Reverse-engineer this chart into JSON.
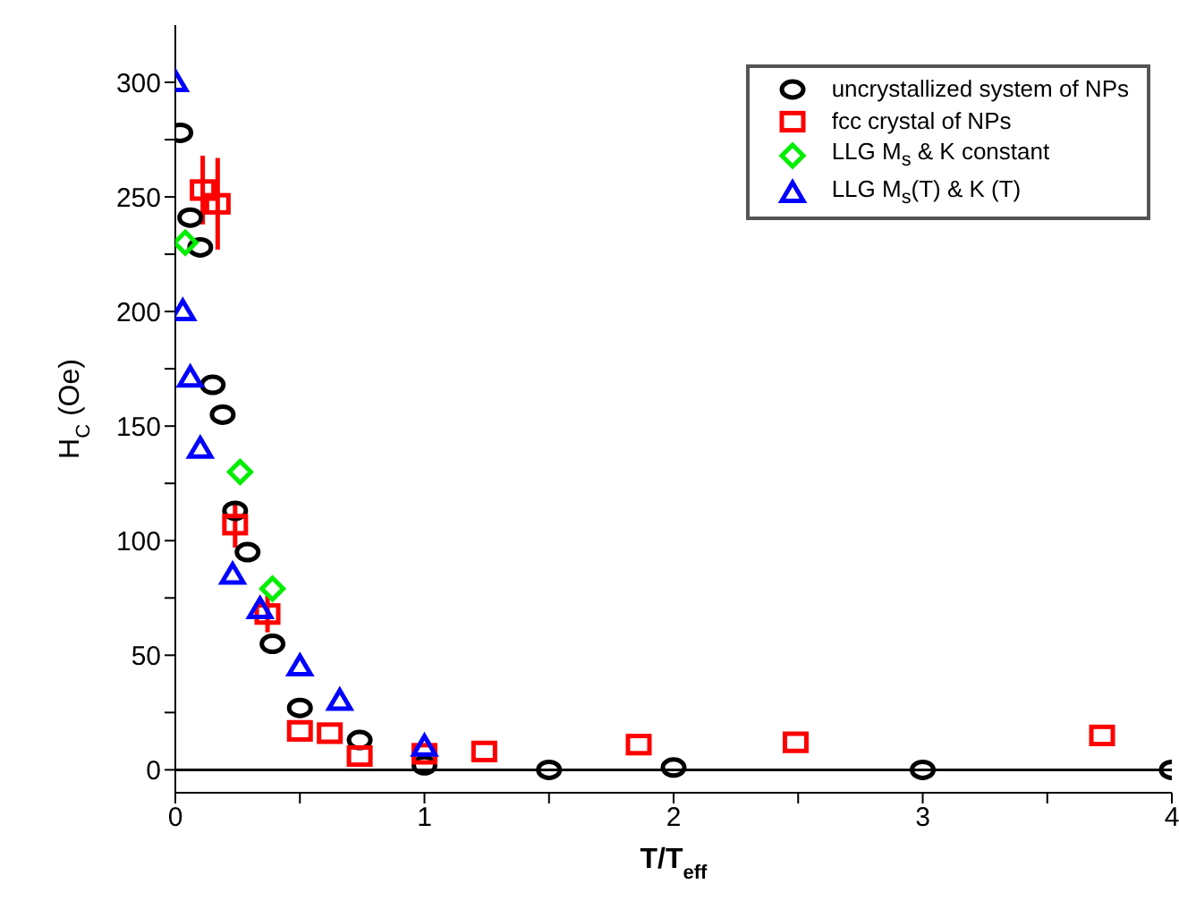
{
  "chart_data": {
    "type": "scatter",
    "xlabel": "T/T$_{eff}$",
    "ylabel": "H$_{C}$ (Oe)",
    "xlim": [
      0,
      4
    ],
    "ylim": [
      -10,
      325
    ],
    "xticks": [
      0,
      {
        "value": 0.5,
        "label": null
      },
      1,
      {
        "value": 1.5,
        "label": null
      },
      2,
      {
        "value": 2.5,
        "label": null
      },
      3,
      {
        "value": 3.5,
        "label": null
      },
      4
    ],
    "yticks": [
      0,
      {
        "value": 25,
        "label": null
      },
      50,
      {
        "value": 75,
        "label": null
      },
      100,
      {
        "value": 125,
        "label": null
      },
      150,
      {
        "value": 175,
        "label": null
      },
      200,
      {
        "value": 225,
        "label": null
      },
      250,
      {
        "value": 275,
        "label": null
      },
      300
    ],
    "grid": false,
    "legend": "top right",
    "ref_lines": [
      {
        "axis": "y",
        "value": 0,
        "color": "#000000",
        "line_style": "solid"
      }
    ],
    "series": [
      {
        "name": "uncrystallized system of NPs",
        "color": "#000000",
        "marker": "circle",
        "x": [
          0.02,
          0.06,
          0.1,
          0.15,
          0.19,
          0.24,
          0.29,
          0.39,
          0.5,
          0.74,
          1.0,
          1.5,
          2.0,
          3.0,
          4.0
        ],
        "values": [
          278,
          241,
          228,
          168,
          155,
          113,
          95,
          55,
          27,
          13,
          2,
          0,
          1,
          0,
          0
        ]
      },
      {
        "name": "fcc crystal of NPs",
        "color": "#ff0000",
        "marker": "square",
        "x": [
          0.11,
          0.17,
          0.24,
          0.37,
          0.5,
          0.62,
          0.74,
          1.0,
          1.24,
          1.86,
          2.49,
          3.72
        ],
        "values": [
          253,
          247,
          107,
          68,
          17,
          16,
          6,
          7,
          8,
          11,
          12,
          15
        ],
        "errors": [
          15,
          20,
          10,
          8,
          null,
          null,
          null,
          null,
          null,
          null,
          null,
          null
        ]
      },
      {
        "name": "LLG M$_{s}$ & K constant",
        "color": "#00ee00",
        "marker": "diamond",
        "x": [
          0.04,
          0.26,
          0.39
        ],
        "values": [
          230,
          130,
          79
        ]
      },
      {
        "name": "LLG M$_{s}$(T) & K (T)",
        "color": "#0000ff",
        "marker": "triangle",
        "x": [
          0.0,
          0.03,
          0.06,
          0.1,
          0.23,
          0.34,
          0.5,
          0.66,
          1.0
        ],
        "values": [
          300,
          200,
          171,
          140,
          85,
          70,
          45,
          30,
          10
        ]
      }
    ]
  }
}
